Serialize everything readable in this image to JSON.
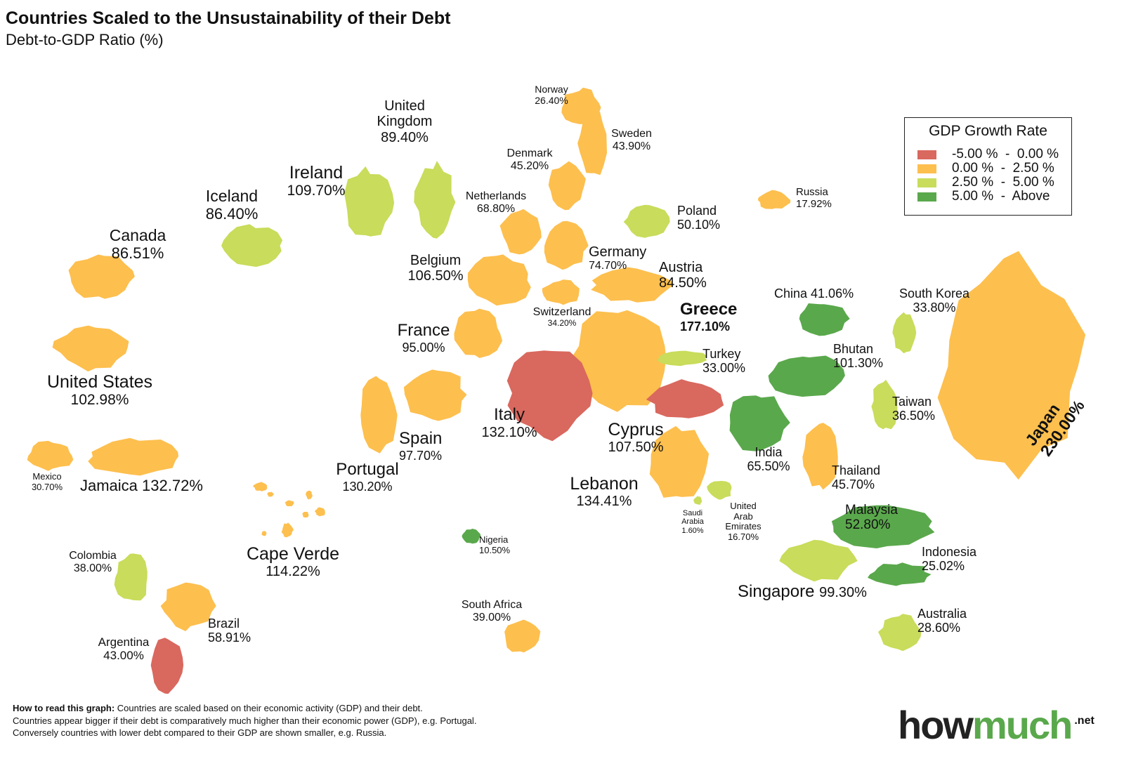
{
  "title": "Countries Scaled to the Unsustainability of their Debt",
  "subtitle": "Debt-to-GDP Ratio (%)",
  "legend": {
    "title": "GDP Growth Rate",
    "items": [
      {
        "label": "-5.00 %  -  0.00 %",
        "color": "#d9685e"
      },
      {
        "label": "0.00 %  -  2.50 %",
        "color": "#fdbf4e"
      },
      {
        "label": "2.50 %  -  5.00 %",
        "color": "#c9dc5b"
      },
      {
        "label": "5.00 %  -  Above",
        "color": "#5aa84c"
      }
    ]
  },
  "countries": [
    {
      "name": "Canada",
      "debt": "86.51%",
      "growth_class": 1
    },
    {
      "name": "United States",
      "debt": "102.98%",
      "growth_class": 1
    },
    {
      "name": "Mexico",
      "debt": "30.70%",
      "growth_class": 1
    },
    {
      "name": "Jamaica",
      "debt": "132.72%",
      "growth_class": 1
    },
    {
      "name": "Iceland",
      "debt": "86.40%",
      "growth_class": 2
    },
    {
      "name": "Ireland",
      "debt": "109.70%",
      "growth_class": 2
    },
    {
      "name": "United Kingdom",
      "debt": "89.40%",
      "growth_class": 2
    },
    {
      "name": "Norway",
      "debt": "26.40%",
      "growth_class": 1
    },
    {
      "name": "Sweden",
      "debt": "43.90%",
      "growth_class": 1
    },
    {
      "name": "Denmark",
      "debt": "45.20%",
      "growth_class": 1
    },
    {
      "name": "Netherlands",
      "debt": "68.80%",
      "growth_class": 1
    },
    {
      "name": "Belgium",
      "debt": "106.50%",
      "growth_class": 1
    },
    {
      "name": "Germany",
      "debt": "74.70%",
      "growth_class": 1
    },
    {
      "name": "Poland",
      "debt": "50.10%",
      "growth_class": 2
    },
    {
      "name": "Russia",
      "debt": "17.92%",
      "growth_class": 1
    },
    {
      "name": "Austria",
      "debt": "84.50%",
      "growth_class": 1
    },
    {
      "name": "Switzerland",
      "debt": "34.20%",
      "growth_class": 1
    },
    {
      "name": "France",
      "debt": "95.00%",
      "growth_class": 1
    },
    {
      "name": "Greece",
      "debt": "177.10%",
      "growth_class": 1
    },
    {
      "name": "Turkey",
      "debt": "33.00%",
      "growth_class": 2
    },
    {
      "name": "Italy",
      "debt": "132.10%",
      "growth_class": 0
    },
    {
      "name": "Spain",
      "debt": "97.70%",
      "growth_class": 1
    },
    {
      "name": "Portugal",
      "debt": "130.20%",
      "growth_class": 1
    },
    {
      "name": "Cyprus",
      "debt": "107.50%",
      "growth_class": 0
    },
    {
      "name": "Lebanon",
      "debt": "134.41%",
      "growth_class": 1
    },
    {
      "name": "Saudi Arabia",
      "debt": "1.60%",
      "growth_class": 2
    },
    {
      "name": "United Arab Emirates",
      "debt": "16.70%",
      "growth_class": 2
    },
    {
      "name": "China",
      "debt": "41.06%",
      "growth_class": 3
    },
    {
      "name": "Bhutan",
      "debt": "101.30%",
      "growth_class": 3
    },
    {
      "name": "India",
      "debt": "65.50%",
      "growth_class": 3
    },
    {
      "name": "South Korea",
      "debt": "33.80%",
      "growth_class": 2
    },
    {
      "name": "Taiwan",
      "debt": "36.50%",
      "growth_class": 2
    },
    {
      "name": "Japan",
      "debt": "230.00%",
      "growth_class": 1
    },
    {
      "name": "Thailand",
      "debt": "45.70%",
      "growth_class": 1
    },
    {
      "name": "Malaysia",
      "debt": "52.80%",
      "growth_class": 3
    },
    {
      "name": "Singapore",
      "debt": "99.30%",
      "growth_class": 2
    },
    {
      "name": "Indonesia",
      "debt": "25.02%",
      "growth_class": 3
    },
    {
      "name": "Australia",
      "debt": "28.60%",
      "growth_class": 2
    },
    {
      "name": "Nigeria",
      "debt": "10.50%",
      "growth_class": 3
    },
    {
      "name": "South Africa",
      "debt": "39.00%",
      "growth_class": 1
    },
    {
      "name": "Cape Verde",
      "debt": "114.22%",
      "growth_class": 1
    },
    {
      "name": "Colombia",
      "debt": "38.00%",
      "growth_class": 2
    },
    {
      "name": "Brazil",
      "debt": "58.91%",
      "growth_class": 1
    },
    {
      "name": "Argentina",
      "debt": "43.00%",
      "growth_class": 0
    }
  ],
  "note": {
    "bold": "How to read this graph:",
    "line1": " Countries are scaled based on their economic activity (GDP) and their debt.",
    "line2": "Countries appear bigger if their debt is comparatively much higher than their economic power (GDP), e.g. Portugal.",
    "line3": "Conversely countries with lower debt compared to their GDP are shown smaller, e.g. Russia."
  },
  "logo": {
    "part1": "how",
    "part2": "much",
    "suffix": ".net",
    "color1": "#222222",
    "color2": "#5aa84c"
  }
}
